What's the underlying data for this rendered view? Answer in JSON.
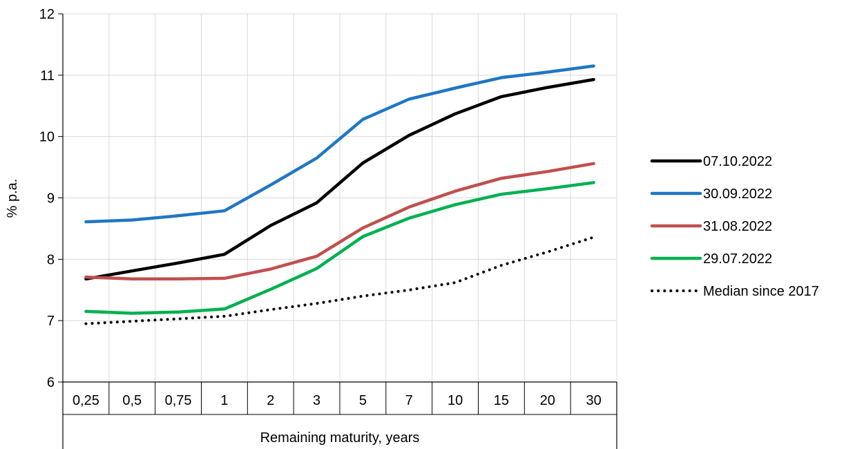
{
  "chart_data": {
    "type": "line",
    "title": "",
    "xlabel": "Remaining maturity, years",
    "ylabel": "% p.a.",
    "ylim": [
      6,
      12
    ],
    "yticks": [
      "6",
      "7",
      "8",
      "9",
      "10",
      "11",
      "12"
    ],
    "categories": [
      "0,25",
      "0,5",
      "0,75",
      "1",
      "2",
      "3",
      "5",
      "7",
      "10",
      "15",
      "20",
      "30"
    ],
    "grid": true,
    "legend": "right",
    "series": [
      {
        "name": "07.10.2022",
        "color": "#000000",
        "style": "solid",
        "values": [
          7.68,
          7.81,
          7.94,
          8.08,
          8.55,
          8.92,
          9.57,
          10.02,
          10.37,
          10.65,
          10.8,
          10.93
        ]
      },
      {
        "name": "30.09.2022",
        "color": "#1F77C4",
        "style": "solid",
        "values": [
          8.61,
          8.64,
          8.71,
          8.79,
          9.21,
          9.65,
          10.28,
          10.61,
          10.79,
          10.96,
          11.05,
          11.15
        ]
      },
      {
        "name": "31.08.2022",
        "color": "#C0504D",
        "style": "solid",
        "values": [
          7.71,
          7.68,
          7.68,
          7.69,
          7.84,
          8.05,
          8.51,
          8.85,
          9.11,
          9.32,
          9.43,
          9.56
        ]
      },
      {
        "name": "29.07.2022",
        "color": "#00B050",
        "style": "solid",
        "values": [
          7.15,
          7.12,
          7.14,
          7.19,
          7.51,
          7.85,
          8.37,
          8.67,
          8.89,
          9.06,
          9.15,
          9.25
        ]
      },
      {
        "name": "Median since 2017",
        "color": "#000000",
        "style": "dotted",
        "values": [
          6.95,
          6.99,
          7.03,
          7.07,
          7.18,
          7.28,
          7.4,
          7.5,
          7.62,
          7.9,
          8.12,
          8.36
        ]
      }
    ]
  }
}
